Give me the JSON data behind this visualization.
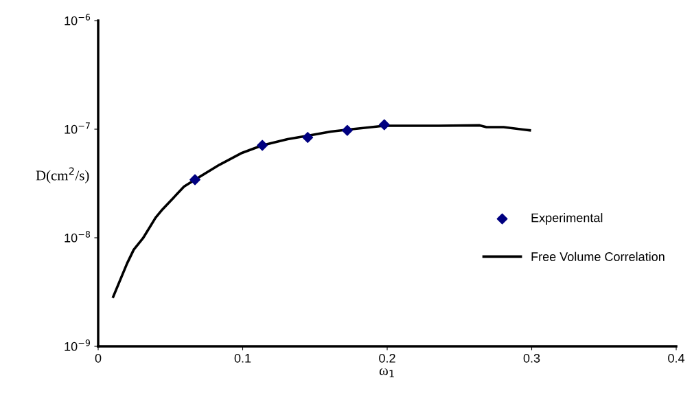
{
  "chart_data": {
    "type": "line",
    "xlabel": "ω$_{1}$",
    "ylabel": "D(cm$^{2}$/s)",
    "log": "y",
    "grid": false,
    "legend": "lower right",
    "xlim": [
      0,
      0.4
    ],
    "xticks": [
      0,
      0.1,
      0.2,
      0.3,
      0.4
    ],
    "ylim": [
      1e-09,
      1e-06
    ],
    "yticks": [
      {
        "value": 1e-09,
        "label": "10$^{−9}$"
      },
      {
        "value": 1e-08,
        "label": "10$^{−8}$"
      },
      {
        "value": 1e-07,
        "label": "10$^{−7}$"
      },
      {
        "value": 1e-06,
        "label": "10$^{−6}$"
      }
    ],
    "series": [
      {
        "name": "Experimental",
        "type": "scatter",
        "marker": "diamond",
        "color": "#000080",
        "x": [
          0.067,
          0.1136,
          0.145,
          0.1724,
          0.198
        ],
        "values": [
          3.43e-08,
          7.1e-08,
          8.4e-08,
          9.76e-08,
          1.1e-07
        ]
      },
      {
        "name": "Free Volume Correlation",
        "marker": "none",
        "line_style": "solid",
        "color": "#000000",
        "x": [
          0.0104,
          0.02,
          0.0246,
          0.031,
          0.0397,
          0.0444,
          0.0594,
          0.067,
          0.0839,
          0.0989,
          0.1136,
          0.1311,
          0.1464,
          0.161,
          0.1724,
          0.198,
          0.2355,
          0.264,
          0.2687,
          0.2806,
          0.2987
        ],
        "values": [
          2.86e-09,
          5.8e-09,
          7.76e-09,
          9.9e-09,
          1.53e-08,
          1.82e-08,
          2.96e-08,
          3.43e-08,
          4.7e-08,
          6e-08,
          7.1e-08,
          8.1e-08,
          8.77e-08,
          9.5e-08,
          9.9e-08,
          1.076e-07,
          1.076e-07,
          1.085e-07,
          1.045e-07,
          1.045e-07,
          9.76e-08
        ]
      }
    ]
  }
}
